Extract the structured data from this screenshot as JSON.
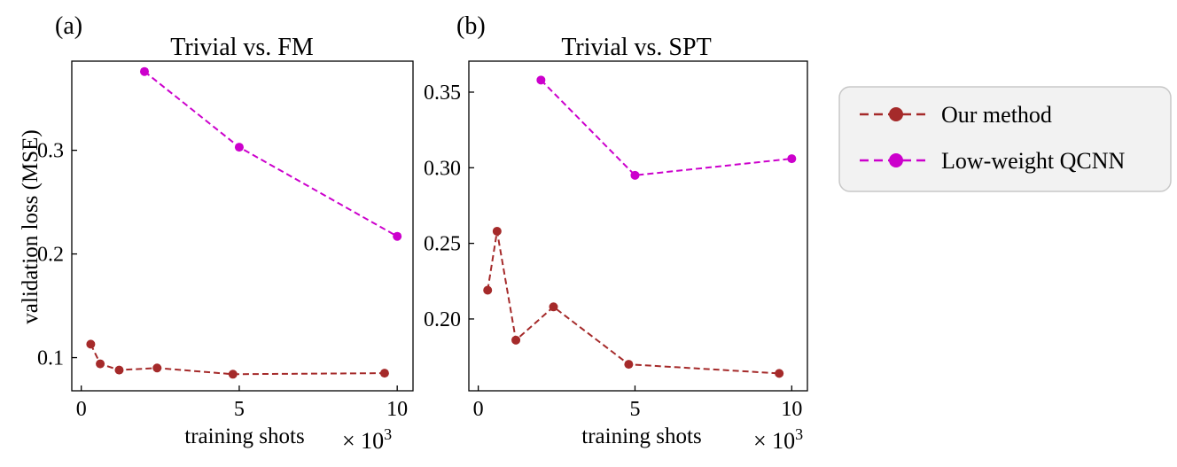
{
  "chart_data": [
    {
      "type": "line",
      "panel": "(a)",
      "title": "Trivial vs. FM",
      "xlabel": "training shots",
      "xmultiplier": "× 10",
      "xmultiplier_exp": "3",
      "ylabel": "validation loss (MSE)",
      "xlim": [
        -0.3,
        10.5
      ],
      "ylim": [
        0.068,
        0.386
      ],
      "xticks": [
        0,
        5,
        10
      ],
      "xtick_labels": [
        "0",
        "5",
        "10"
      ],
      "yticks": [
        0.1,
        0.2,
        0.3
      ],
      "ytick_labels": [
        "0.1",
        "0.2",
        "0.3"
      ],
      "series": [
        {
          "name": "Our method",
          "color": "#a52a2a",
          "x": [
            0.3,
            0.6,
            1.2,
            2.4,
            4.8,
            9.6
          ],
          "y": [
            0.113,
            0.094,
            0.088,
            0.09,
            0.084,
            0.085
          ]
        },
        {
          "name": "Low-weight QCNN",
          "color": "#cc00cc",
          "x": [
            2,
            5,
            10
          ],
          "y": [
            0.376,
            0.303,
            0.217
          ]
        }
      ]
    },
    {
      "type": "line",
      "panel": "(b)",
      "title": "Trivial vs. SPT",
      "xlabel": "training shots",
      "xmultiplier": "× 10",
      "xmultiplier_exp": "3",
      "ylabel": "",
      "xlim": [
        -0.3,
        10.5
      ],
      "ylim": [
        0.1525,
        0.3705
      ],
      "xticks": [
        0,
        5,
        10
      ],
      "xtick_labels": [
        "0",
        "5",
        "10"
      ],
      "yticks": [
        0.2,
        0.25,
        0.3,
        0.35
      ],
      "ytick_labels": [
        "0.20",
        "0.25",
        "0.30",
        "0.35"
      ],
      "series": [
        {
          "name": "Our method",
          "color": "#a52a2a",
          "x": [
            0.3,
            0.6,
            1.2,
            2.4,
            4.8,
            9.6
          ],
          "y": [
            0.219,
            0.258,
            0.186,
            0.208,
            0.17,
            0.164
          ]
        },
        {
          "name": "Low-weight QCNN",
          "color": "#cc00cc",
          "x": [
            2,
            5,
            10
          ],
          "y": [
            0.358,
            0.295,
            0.306
          ]
        }
      ]
    }
  ],
  "legend": {
    "placement": "right",
    "entries": [
      {
        "label": "Our method",
        "color": "#a52a2a"
      },
      {
        "label": "Low-weight QCNN",
        "color": "#cc00cc"
      }
    ]
  }
}
